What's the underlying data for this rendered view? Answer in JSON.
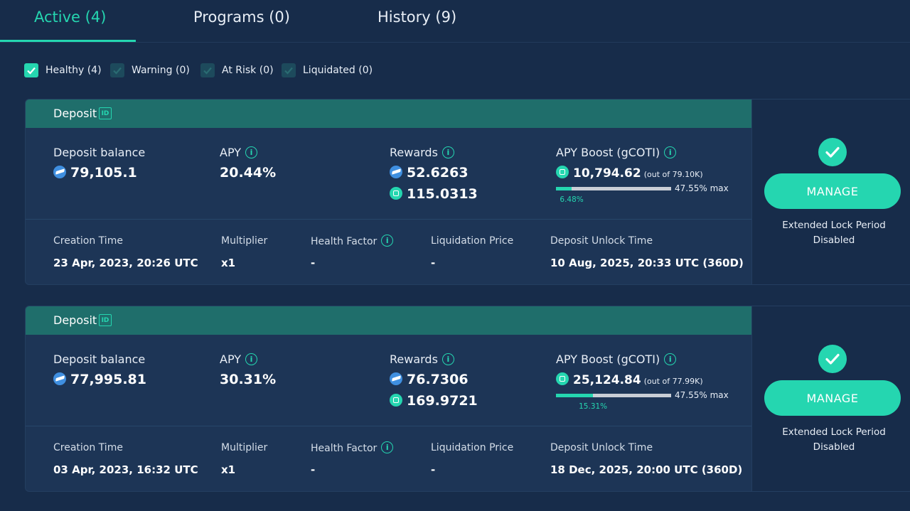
{
  "tabs": [
    {
      "label": "Active (4)"
    },
    {
      "label": "Programs (0)"
    },
    {
      "label": "History (9)"
    }
  ],
  "filters": [
    {
      "label": "Healthy (4)",
      "checked": true
    },
    {
      "label": "Warning (0)",
      "checked": false
    },
    {
      "label": "At Risk (0)",
      "checked": false
    },
    {
      "label": "Liquidated (0)",
      "checked": false
    }
  ],
  "labels": {
    "deposit": "Deposit",
    "id_badge": "ID",
    "deposit_balance": "Deposit balance",
    "apy": "APY",
    "rewards": "Rewards",
    "apy_boost": "APY Boost (gCOTI)",
    "creation_time": "Creation Time",
    "multiplier": "Multiplier",
    "health_factor": "Health Factor",
    "liquidation_price": "Liquidation Price",
    "deposit_unlock_time": "Deposit Unlock Time",
    "manage": "MANAGE",
    "side_note": "Extended Lock Period Disabled",
    "info_glyph": "i"
  },
  "colors": {
    "accent": "#25d6b0",
    "background": "#172c4a",
    "card": "#1d3556",
    "header": "#1f6e6b"
  },
  "deposits": [
    {
      "balance": "79,105.1",
      "apy": "20.44%",
      "reward_blue": "52.6263",
      "reward_green": "115.0313",
      "boost_value": "10,794.62",
      "boost_out_of": "(out of 79.10K)",
      "boost_max": "47.55% max",
      "boost_pct_label": "6.48%",
      "boost_fraction": 0.1363,
      "creation_time": "23 Apr, 2023, 20:26 UTC",
      "multiplier": "x1",
      "health_factor": "-",
      "liquidation_price": "-",
      "unlock_time": "10 Aug, 2025, 20:33 UTC (360D)"
    },
    {
      "balance": "77,995.81",
      "apy": "30.31%",
      "reward_blue": "76.7306",
      "reward_green": "169.9721",
      "boost_value": "25,124.84",
      "boost_out_of": "(out of 77.99K)",
      "boost_max": "47.55% max",
      "boost_pct_label": "15.31%",
      "boost_fraction": 0.322,
      "creation_time": "03 Apr, 2023, 16:32 UTC",
      "multiplier": "x1",
      "health_factor": "-",
      "liquidation_price": "-",
      "unlock_time": "18 Dec, 2025, 20:00 UTC (360D)"
    }
  ]
}
